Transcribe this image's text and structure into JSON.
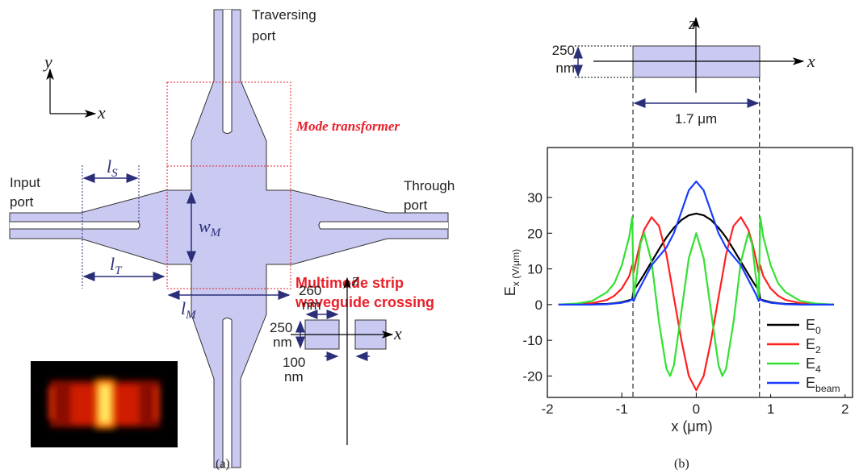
{
  "figure_a": {
    "traversing_port": [
      "Traversing",
      "port"
    ],
    "mode_transformer": "Mode transformer",
    "input_port": [
      "Input",
      "port"
    ],
    "through_port": [
      "Through",
      "port"
    ],
    "l_s": "lS",
    "w_m": "wM",
    "l_t": "lT",
    "l_m": "lM",
    "crossing": [
      "Multimode strip",
      "waveguide crossing"
    ],
    "axis_y": "y",
    "axis_x": "x",
    "inset_width": [
      "260",
      "nm"
    ],
    "inset_height": [
      "250",
      "nm"
    ],
    "inset_gap": [
      "100",
      "nm"
    ],
    "inset_z": "z",
    "inset_x": "x",
    "caption": "(a)"
  },
  "figure_b": {
    "height": [
      "250",
      "nm"
    ],
    "width": "1.7 μm",
    "axis_z": "z",
    "axis_x": "x",
    "caption": "(b)"
  },
  "chart_data": {
    "type": "line",
    "xlabel": "x (μm)",
    "ylabel": "Ex (V/μm)",
    "x": [
      -1.85,
      -1.6,
      -1.4,
      -1.2,
      -1.1,
      -1.0,
      -0.9,
      -0.86,
      -0.84,
      -0.8,
      -0.75,
      -0.7,
      -0.6,
      -0.5,
      -0.4,
      -0.35,
      -0.3,
      -0.2,
      -0.1,
      0,
      0.1,
      0.2,
      0.3,
      0.35,
      0.4,
      0.5,
      0.6,
      0.7,
      0.75,
      0.8,
      0.84,
      0.86,
      0.9,
      1.0,
      1.1,
      1.2,
      1.4,
      1.6,
      1.85
    ],
    "series": [
      {
        "name": "E0",
        "color": "#000000",
        "values": [
          0,
          0,
          0.1,
          0.2,
          0.4,
          0.7,
          1.2,
          1.5,
          4,
          5.2,
          6.8,
          8.5,
          12,
          15.5,
          18.8,
          20.2,
          21.5,
          23.7,
          25,
          25.5,
          25,
          23.7,
          21.5,
          20.2,
          18.8,
          15.5,
          12,
          8.5,
          6.8,
          5.2,
          4,
          1.5,
          1.2,
          0.7,
          0.4,
          0.2,
          0.1,
          0,
          0
        ]
      },
      {
        "name": "E2",
        "color": "#ff2020",
        "values": [
          0,
          0.1,
          0.4,
          1.3,
          2.5,
          4.5,
          8,
          11,
          9,
          13,
          17.5,
          21,
          24.5,
          22,
          14,
          8,
          2,
          -10,
          -20,
          -24,
          -20,
          -10,
          2,
          8,
          14,
          22,
          24.5,
          21,
          17.5,
          13,
          9,
          11,
          8,
          4.5,
          2.5,
          1.3,
          0.4,
          0.1,
          0
        ]
      },
      {
        "name": "E4",
        "color": "#33e033",
        "values": [
          0,
          0.3,
          1,
          3.5,
          6,
          11,
          19,
          24.5,
          2,
          8,
          17,
          20,
          12,
          -5,
          -18,
          -20,
          -17,
          -2,
          13,
          20,
          13,
          -2,
          -17,
          -20,
          -18,
          -5,
          12,
          20,
          17,
          8,
          2,
          24.5,
          19,
          11,
          6,
          3.5,
          1,
          0.3,
          0
        ]
      },
      {
        "name": "Ebeam",
        "color": "#1a3cff",
        "values": [
          0,
          0,
          0,
          0.1,
          0.3,
          0.5,
          1,
          1.5,
          1,
          3,
          5,
          7,
          11,
          13.5,
          16,
          18,
          20,
          26,
          32,
          34.5,
          32,
          26,
          20,
          18,
          16,
          13.5,
          11,
          7,
          5,
          3,
          1,
          1.5,
          1,
          0.5,
          0.3,
          0.1,
          0,
          0,
          0
        ]
      }
    ],
    "edge_lines": [
      -0.85,
      0.85
    ],
    "xlim": [
      -2,
      2.1
    ],
    "xticks": [
      -2,
      -1,
      0,
      1,
      2
    ],
    "ylim": [
      -26,
      44
    ],
    "yticks": [
      -20,
      -10,
      0,
      10,
      20,
      30
    ],
    "legend": "lower right"
  }
}
